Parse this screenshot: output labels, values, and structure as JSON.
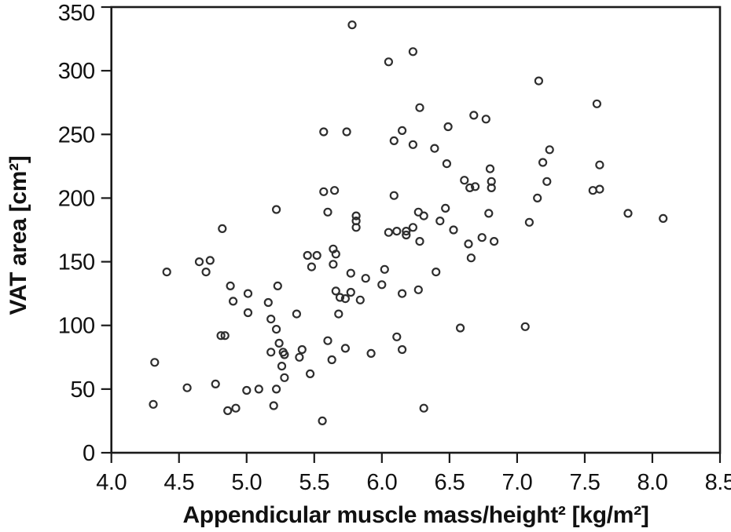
{
  "figure": {
    "background": "#ffffff",
    "frame_color": "#1a1a1a",
    "marker_color": "#2e2e2e"
  },
  "chart_data": {
    "type": "scatter",
    "title": "",
    "xlabel": "Appendicular muscle mass/height² [kg/m²]",
    "ylabel": "VAT area [cm²]",
    "xlim": [
      4.0,
      8.5
    ],
    "ylim": [
      0,
      350
    ],
    "xticks": [
      "4.0",
      "4.5",
      "5.0",
      "5.5",
      "6.0",
      "6.5",
      "7.0",
      "7.5",
      "8.0",
      "8.5"
    ],
    "yticks": [
      "0",
      "50",
      "100",
      "150",
      "200",
      "250",
      "300",
      "350"
    ],
    "grid": false,
    "legend": null,
    "marker": {
      "shape": "open-circle",
      "radius": 4.5,
      "stroke_width": 2.2,
      "stroke": "#2e2e2e",
      "fill": "none"
    },
    "points": [
      [
        5.78,
        336
      ],
      [
        6.23,
        315
      ],
      [
        6.05,
        307
      ],
      [
        7.16,
        292
      ],
      [
        7.59,
        274
      ],
      [
        6.28,
        271
      ],
      [
        6.68,
        265
      ],
      [
        6.77,
        262
      ],
      [
        6.49,
        256
      ],
      [
        6.15,
        253
      ],
      [
        5.57,
        252
      ],
      [
        5.74,
        252
      ],
      [
        6.09,
        245
      ],
      [
        6.23,
        242
      ],
      [
        6.39,
        239
      ],
      [
        7.24,
        238
      ],
      [
        7.19,
        228
      ],
      [
        6.48,
        227
      ],
      [
        7.61,
        226
      ],
      [
        6.8,
        223
      ],
      [
        6.61,
        214
      ],
      [
        6.81,
        213
      ],
      [
        7.22,
        213
      ],
      [
        6.69,
        209
      ],
      [
        6.65,
        208
      ],
      [
        6.81,
        208
      ],
      [
        7.61,
        207
      ],
      [
        7.56,
        206
      ],
      [
        5.65,
        206
      ],
      [
        5.57,
        205
      ],
      [
        6.09,
        202
      ],
      [
        7.15,
        200
      ],
      [
        6.47,
        192
      ],
      [
        5.22,
        191
      ],
      [
        5.6,
        189
      ],
      [
        6.27,
        189
      ],
      [
        6.79,
        188
      ],
      [
        7.82,
        188
      ],
      [
        5.81,
        186
      ],
      [
        6.31,
        186
      ],
      [
        8.08,
        184
      ],
      [
        5.81,
        182
      ],
      [
        6.43,
        182
      ],
      [
        7.09,
        181
      ],
      [
        5.81,
        177
      ],
      [
        6.23,
        177
      ],
      [
        4.82,
        176
      ],
      [
        6.53,
        175
      ],
      [
        6.11,
        174
      ],
      [
        6.18,
        174
      ],
      [
        6.05,
        173
      ],
      [
        6.18,
        171
      ],
      [
        6.74,
        169
      ],
      [
        6.83,
        166
      ],
      [
        6.28,
        166
      ],
      [
        6.64,
        164
      ],
      [
        5.64,
        160
      ],
      [
        5.66,
        156
      ],
      [
        5.45,
        155
      ],
      [
        5.52,
        155
      ],
      [
        6.66,
        153
      ],
      [
        4.73,
        151
      ],
      [
        4.65,
        150
      ],
      [
        5.64,
        148
      ],
      [
        5.48,
        146
      ],
      [
        6.02,
        144
      ],
      [
        4.41,
        142
      ],
      [
        4.7,
        142
      ],
      [
        6.4,
        142
      ],
      [
        5.77,
        141
      ],
      [
        5.88,
        137
      ],
      [
        6.0,
        132
      ],
      [
        4.88,
        131
      ],
      [
        5.23,
        131
      ],
      [
        6.27,
        128
      ],
      [
        5.66,
        127
      ],
      [
        5.77,
        126
      ],
      [
        5.01,
        125
      ],
      [
        6.15,
        125
      ],
      [
        5.69,
        122
      ],
      [
        5.73,
        121
      ],
      [
        5.84,
        120
      ],
      [
        4.9,
        119
      ],
      [
        5.16,
        118
      ],
      [
        5.01,
        110
      ],
      [
        5.37,
        109
      ],
      [
        5.68,
        109
      ],
      [
        5.18,
        105
      ],
      [
        7.06,
        99
      ],
      [
        6.58,
        98
      ],
      [
        5.22,
        97
      ],
      [
        4.81,
        92
      ],
      [
        4.84,
        92
      ],
      [
        6.11,
        91
      ],
      [
        5.6,
        88
      ],
      [
        5.24,
        86
      ],
      [
        5.73,
        82
      ],
      [
        5.41,
        81
      ],
      [
        6.15,
        81
      ],
      [
        5.18,
        79
      ],
      [
        5.27,
        79
      ],
      [
        5.92,
        78
      ],
      [
        5.28,
        77
      ],
      [
        5.39,
        75
      ],
      [
        5.63,
        73
      ],
      [
        4.32,
        71
      ],
      [
        5.26,
        68
      ],
      [
        5.47,
        62
      ],
      [
        5.28,
        59
      ],
      [
        4.77,
        54
      ],
      [
        4.56,
        51
      ],
      [
        5.09,
        50
      ],
      [
        5.22,
        50
      ],
      [
        5.0,
        49
      ],
      [
        4.31,
        38
      ],
      [
        5.2,
        37
      ],
      [
        4.92,
        35
      ],
      [
        6.31,
        35
      ],
      [
        4.86,
        33
      ],
      [
        5.56,
        25
      ]
    ]
  }
}
